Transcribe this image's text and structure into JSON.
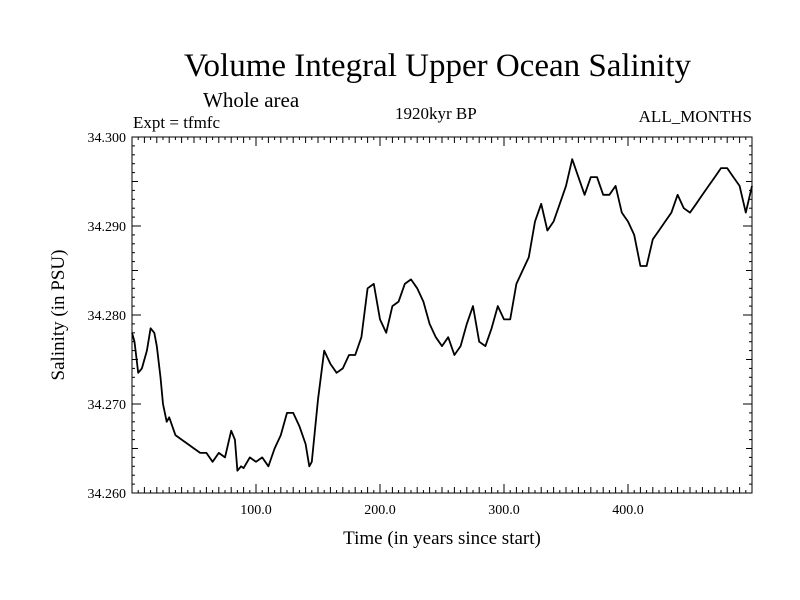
{
  "chart_data": {
    "type": "line",
    "title": "Volume Integral Upper Ocean Salinity",
    "subtitle": "Whole area",
    "left_label": "Expt = tfmfc",
    "center_label": "1920kyr BP",
    "right_label": "ALL_MONTHS",
    "xlabel": "Time (in years since start)",
    "ylabel": "Salinity (in PSU)",
    "xlim": [
      0,
      500
    ],
    "ylim": [
      34.26,
      34.3
    ],
    "x_ticks": [
      {
        "value": 100,
        "label": "100.0"
      },
      {
        "value": 200,
        "label": "200.0"
      },
      {
        "value": 300,
        "label": "300.0"
      },
      {
        "value": 400,
        "label": "400.0"
      }
    ],
    "y_ticks": [
      {
        "value": 34.26,
        "label": "34.260"
      },
      {
        "value": 34.27,
        "label": "34.270"
      },
      {
        "value": 34.28,
        "label": "34.280"
      },
      {
        "value": 34.29,
        "label": "34.290"
      },
      {
        "value": 34.3,
        "label": "34.300"
      }
    ],
    "grid": false,
    "series": [
      {
        "name": "Salinity",
        "x": [
          0,
          2,
          5,
          8,
          12,
          15,
          18,
          20,
          23,
          25,
          28,
          30,
          35,
          40,
          45,
          50,
          55,
          60,
          65,
          70,
          75,
          80,
          83,
          85,
          88,
          90,
          95,
          100,
          105,
          110,
          115,
          120,
          125,
          130,
          135,
          140,
          143,
          145,
          150,
          155,
          160,
          165,
          170,
          175,
          180,
          185,
          190,
          195,
          200,
          205,
          210,
          215,
          220,
          225,
          230,
          235,
          240,
          245,
          250,
          255,
          260,
          265,
          270,
          275,
          280,
          285,
          290,
          295,
          300,
          305,
          310,
          315,
          320,
          325,
          330,
          335,
          340,
          345,
          350,
          355,
          360,
          365,
          370,
          375,
          380,
          385,
          390,
          395,
          400,
          405,
          410,
          415,
          420,
          425,
          430,
          435,
          440,
          445,
          450,
          455,
          460,
          465,
          470,
          475,
          480,
          485,
          490,
          495,
          500
        ],
        "values": [
          34.278,
          34.277,
          34.2735,
          34.274,
          34.276,
          34.2785,
          34.278,
          34.2765,
          34.273,
          34.27,
          34.268,
          34.2685,
          34.2665,
          34.266,
          34.2655,
          34.265,
          34.2645,
          34.2645,
          34.2635,
          34.2645,
          34.264,
          34.267,
          34.266,
          34.2625,
          34.263,
          34.2628,
          34.264,
          34.2635,
          34.264,
          34.263,
          34.265,
          34.2665,
          34.269,
          34.269,
          34.2675,
          34.2655,
          34.263,
          34.2635,
          34.2705,
          34.276,
          34.2745,
          34.2735,
          34.274,
          34.2755,
          34.2755,
          34.2775,
          34.283,
          34.2835,
          34.2795,
          34.278,
          34.281,
          34.2815,
          34.2835,
          34.284,
          34.283,
          34.2815,
          34.279,
          34.2775,
          34.2765,
          34.2775,
          34.2755,
          34.2765,
          34.279,
          34.281,
          34.277,
          34.2765,
          34.2785,
          34.281,
          34.2795,
          34.2795,
          34.2835,
          34.285,
          34.2865,
          34.2905,
          34.2925,
          34.2895,
          34.2905,
          34.2925,
          34.2945,
          34.2975,
          34.2955,
          34.2935,
          34.2955,
          34.2955,
          34.2935,
          34.2935,
          34.2945,
          34.2915,
          34.2905,
          34.289,
          34.2855,
          34.2855,
          34.2885,
          34.2895,
          34.2905,
          34.2915,
          34.2935,
          34.292,
          34.2915,
          34.2925,
          34.2935,
          34.2945,
          34.2955,
          34.2965,
          34.2965,
          34.2955,
          34.2945,
          34.2915,
          34.2945
        ]
      }
    ]
  }
}
